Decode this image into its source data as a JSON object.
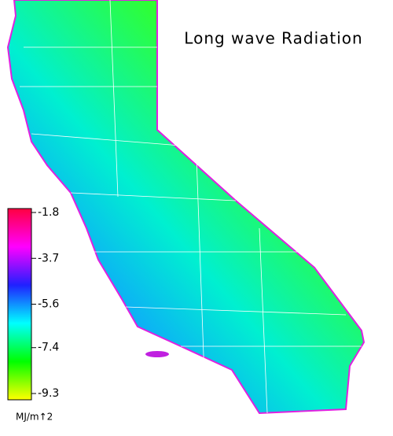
{
  "title": "Long wave Radiation",
  "colorbar": {
    "range": [
      -1.8,
      -9.3
    ],
    "ticks": [
      -1.8,
      -3.7,
      -5.6,
      -7.4,
      -9.3
    ],
    "unit": "MJ/m↑2",
    "colors": [
      "#ff0040",
      "#ff00ff",
      "#2020ff",
      "#00ffff",
      "#00ff00",
      "#ffff00"
    ]
  }
}
